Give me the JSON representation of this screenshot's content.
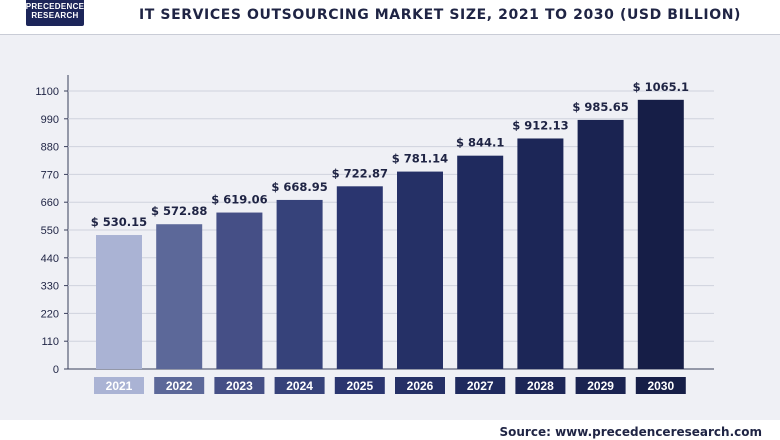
{
  "logo": {
    "line1": "PRECEDENCE",
    "line2": "RESEARCH"
  },
  "chart_data": {
    "type": "bar",
    "title": "IT SERVICES OUTSOURCING MARKET SIZE, 2021 TO 2030 (USD BILLION)",
    "categories": [
      "2021",
      "2022",
      "2023",
      "2024",
      "2025",
      "2026",
      "2027",
      "2028",
      "2029",
      "2030"
    ],
    "values": [
      530.15,
      572.88,
      619.06,
      668.95,
      722.87,
      781.14,
      844.1,
      912.13,
      985.65,
      1065.1
    ],
    "value_labels": [
      "$ 530.15",
      "$ 572.88",
      "$ 619.06",
      "$ 668.95",
      "$ 722.87",
      "$ 781.14",
      "$ 844.1",
      "$ 912.13",
      "$ 985.65",
      "$ 1065.1"
    ],
    "y_ticks": [
      0,
      110,
      220,
      330,
      440,
      550,
      660,
      770,
      880,
      990,
      1100
    ],
    "ylim": [
      0,
      1100
    ],
    "xlabel": "",
    "ylabel": "",
    "grid": true,
    "colors": [
      "#aab3d4",
      "#5c6899",
      "#454f86",
      "#36427a",
      "#2a356f",
      "#253066",
      "#1f2a5e",
      "#1c2657",
      "#1a2351",
      "#161e47"
    ]
  },
  "source": {
    "label": "Source:",
    "url": "www.precedenceresearch.com"
  }
}
